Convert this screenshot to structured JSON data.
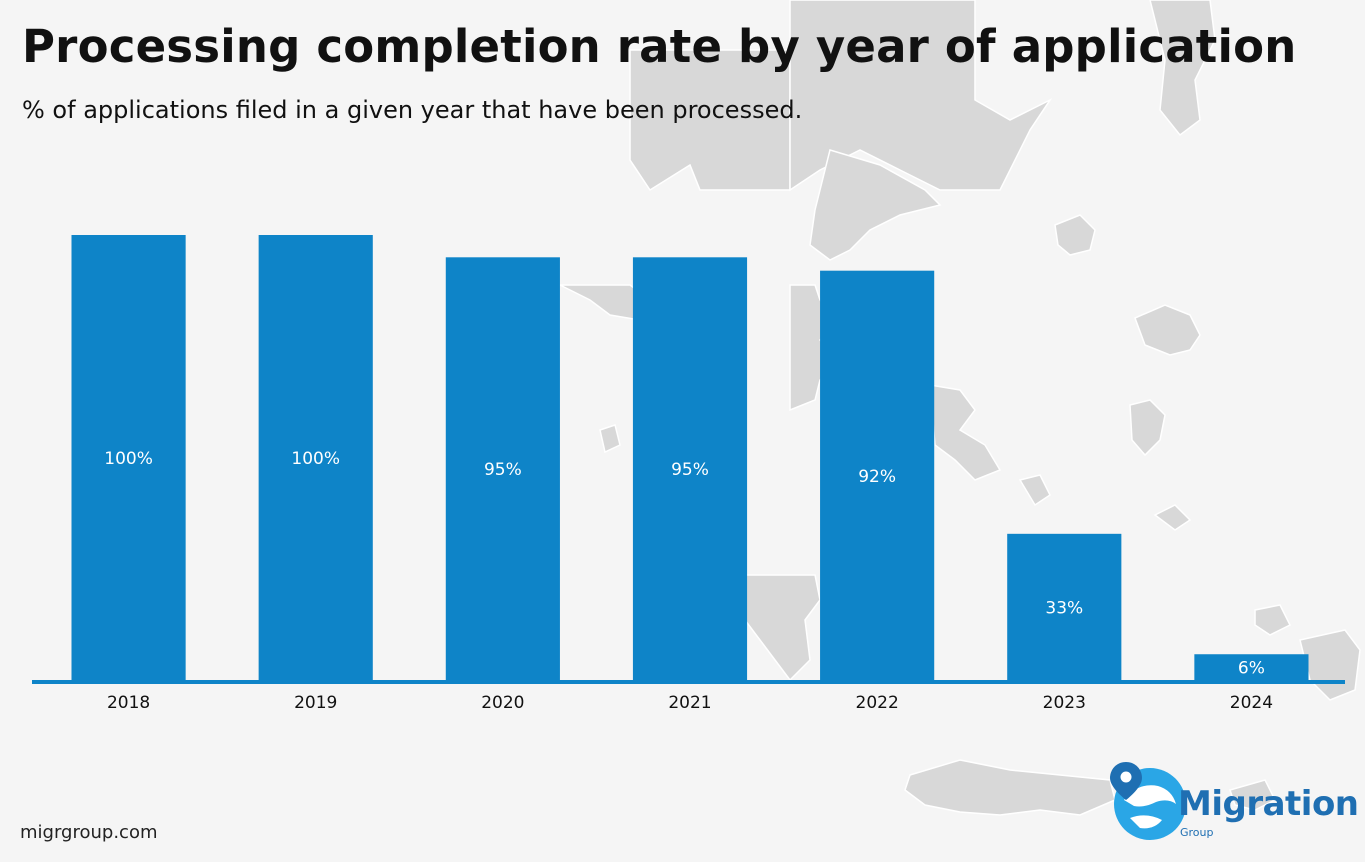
{
  "header": {
    "title": "Processing completion rate by year of application",
    "subtitle": "% of applications filed in a given year that have been processed."
  },
  "footer": {
    "source": "migrgroup.com"
  },
  "logo": {
    "name": "Migration",
    "sub": "Group"
  },
  "colors": {
    "bar": "#0e84c8",
    "axis": "#0e84c8",
    "map": "#d6d6d6",
    "background": "#f5f5f5"
  },
  "chart_data": {
    "type": "bar",
    "categories": [
      "2018",
      "2019",
      "2020",
      "2021",
      "2022",
      "2023",
      "2024"
    ],
    "values": [
      100,
      100,
      95,
      95,
      92,
      33,
      6
    ],
    "value_labels": [
      "100%",
      "100%",
      "95%",
      "95%",
      "92%",
      "33%",
      "6%"
    ],
    "title": "Processing completion rate by year of application",
    "subtitle": "% of applications filed in a given year that have been processed.",
    "xlabel": "",
    "ylabel": "",
    "ylim": [
      0,
      100
    ],
    "grid": false,
    "legend": "none"
  }
}
